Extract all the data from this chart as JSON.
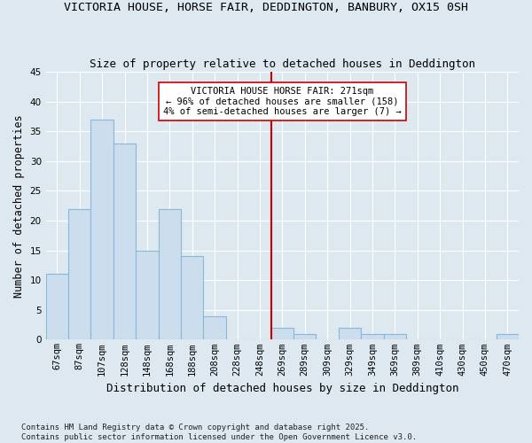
{
  "title": "VICTORIA HOUSE, HORSE FAIR, DEDDINGTON, BANBURY, OX15 0SH",
  "subtitle": "Size of property relative to detached houses in Deddington",
  "xlabel": "Distribution of detached houses by size in Deddington",
  "ylabel": "Number of detached properties",
  "footnote1": "Contains HM Land Registry data © Crown copyright and database right 2025.",
  "footnote2": "Contains public sector information licensed under the Open Government Licence v3.0.",
  "bins": [
    "67sqm",
    "87sqm",
    "107sqm",
    "128sqm",
    "148sqm",
    "168sqm",
    "188sqm",
    "208sqm",
    "228sqm",
    "248sqm",
    "269sqm",
    "289sqm",
    "309sqm",
    "329sqm",
    "349sqm",
    "369sqm",
    "389sqm",
    "410sqm",
    "430sqm",
    "450sqm",
    "470sqm"
  ],
  "values": [
    11,
    22,
    37,
    33,
    15,
    22,
    14,
    4,
    0,
    0,
    2,
    1,
    0,
    2,
    1,
    1,
    0,
    0,
    0,
    0,
    1
  ],
  "bar_color": "#ccdded",
  "bar_edge_color": "#87b8d8",
  "background_color": "#dde8f0",
  "grid_color": "#ffffff",
  "vline_x": 10.0,
  "vline_color": "#cc0000",
  "annotation_text": "VICTORIA HOUSE HORSE FAIR: 271sqm\n← 96% of detached houses are smaller (158)\n4% of semi-detached houses are larger (7) →",
  "annotation_box_color": "#ffffff",
  "annotation_box_edge_color": "#cc0000",
  "ylim": [
    0,
    45
  ],
  "yticks": [
    0,
    5,
    10,
    15,
    20,
    25,
    30,
    35,
    40,
    45
  ],
  "title_fontsize": 9.5,
  "subtitle_fontsize": 9.0,
  "ylabel_fontsize": 8.5,
  "xlabel_fontsize": 9.0,
  "annotation_fontsize": 7.5,
  "tick_fontsize": 7.5,
  "footnote_fontsize": 6.5
}
